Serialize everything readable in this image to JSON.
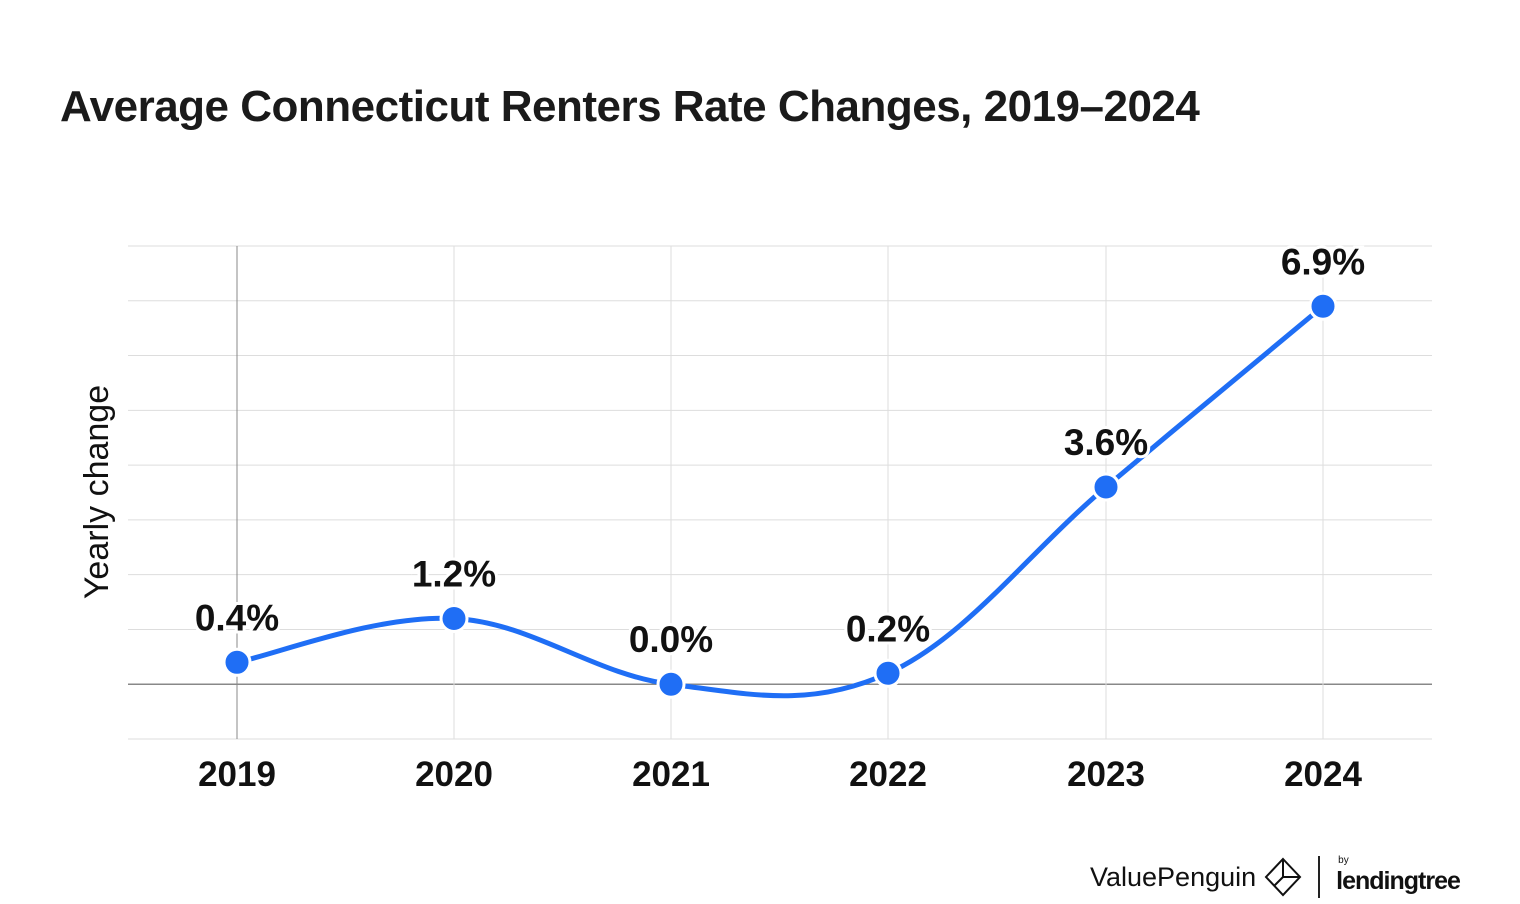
{
  "chart_data": {
    "type": "line",
    "title": "Average Connecticut Renters Rate Changes, 2019–2024",
    "xlabel": "",
    "ylabel": "Yearly change",
    "categories": [
      "2019",
      "2020",
      "2021",
      "2022",
      "2023",
      "2024"
    ],
    "values": [
      0.4,
      1.2,
      0.0,
      0.2,
      3.6,
      6.9
    ],
    "data_labels": [
      "0.4%",
      "1.2%",
      "0.0%",
      "0.2%",
      "3.6%",
      "6.9%"
    ],
    "ylim": [
      -1,
      8
    ],
    "grid": true,
    "y_tick_labels_shown": false,
    "smooth": true,
    "line_color": "#1f6ef5"
  },
  "branding": {
    "logo_text": "ValuePenguin",
    "partner_prefix": "by",
    "partner_text": "lendingtree"
  }
}
